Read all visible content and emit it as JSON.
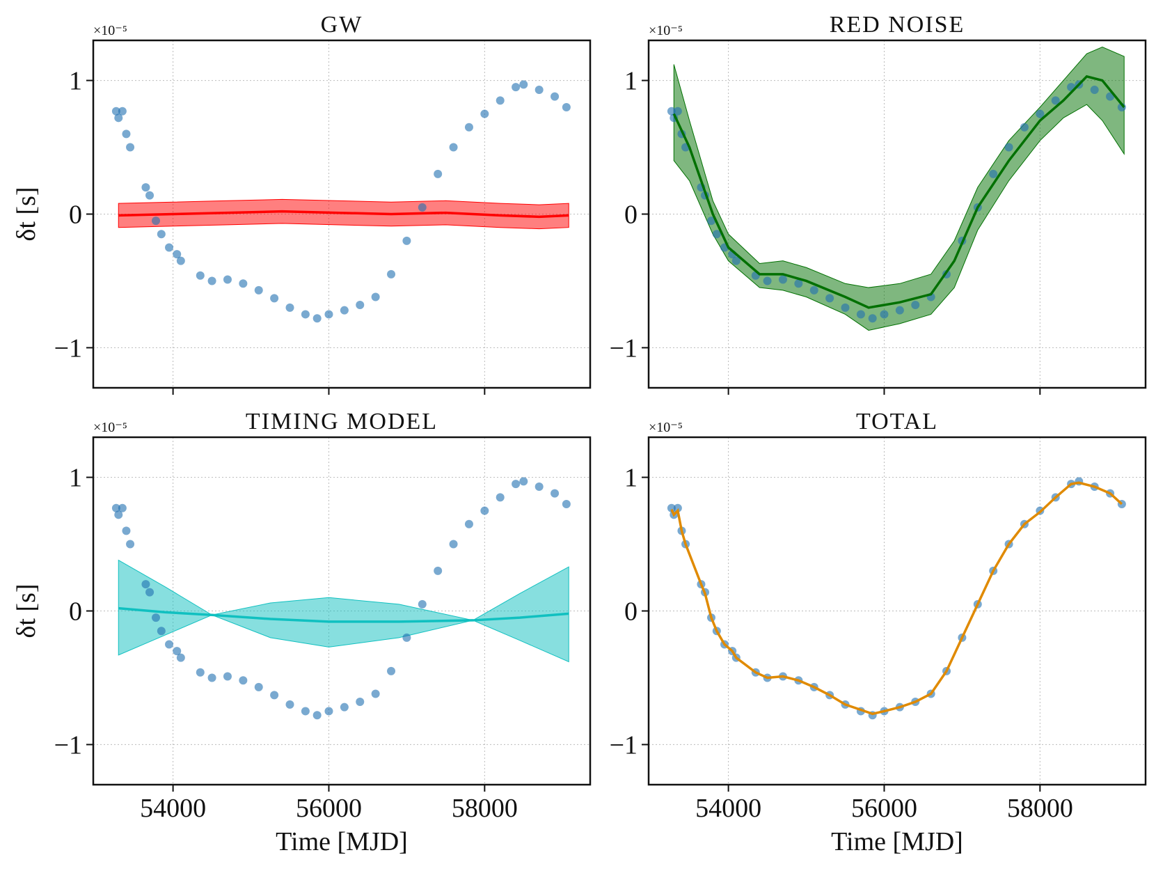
{
  "chart_data": [
    {
      "type": "timeseries",
      "title": "GW",
      "ylabel": "δt [s]",
      "offset_label": "×10⁻⁵",
      "show_xtick_labels": false,
      "xlim": [
        52976,
        59355
      ],
      "ylim": [
        -1.3,
        1.3
      ],
      "xticks": [
        54000,
        56000,
        58000
      ],
      "yticks": [
        {
          "value": -1,
          "label": "−1"
        },
        0,
        1
      ],
      "grid": true,
      "points": {
        "color": "#1f6fb0",
        "x": [
          53270,
          53300,
          53350,
          53400,
          53450,
          53650,
          53700,
          53780,
          53850,
          53950,
          54050,
          54100,
          54350,
          54500,
          54700,
          54900,
          55100,
          55300,
          55500,
          55700,
          55850,
          56000,
          56200,
          56400,
          56600,
          56800,
          57000,
          57200,
          57400,
          57600,
          57800,
          58000,
          58200,
          58400,
          58500,
          58700,
          58900,
          59050
        ],
        "y": [
          0.77,
          0.72,
          0.77,
          0.6,
          0.5,
          0.2,
          0.14,
          -0.05,
          -0.15,
          -0.25,
          -0.3,
          -0.35,
          -0.46,
          -0.5,
          -0.49,
          -0.52,
          -0.57,
          -0.63,
          -0.7,
          -0.75,
          -0.78,
          -0.75,
          -0.72,
          -0.68,
          -0.62,
          -0.45,
          -0.2,
          0.05,
          0.3,
          0.5,
          0.65,
          0.75,
          0.85,
          0.95,
          0.97,
          0.93,
          0.88,
          0.8
        ]
      },
      "model": {
        "color": "#ff0000",
        "x": [
          53300,
          54000,
          54700,
          55400,
          56100,
          56800,
          57500,
          58200,
          58700,
          59080
        ],
        "y": [
          -0.01,
          0.0,
          0.01,
          0.02,
          0.01,
          0.0,
          0.01,
          -0.01,
          -0.02,
          -0.01
        ],
        "upper": [
          0.08,
          0.09,
          0.1,
          0.11,
          0.1,
          0.09,
          0.1,
          0.08,
          0.07,
          0.08
        ],
        "lower": [
          -0.1,
          -0.09,
          -0.08,
          -0.07,
          -0.08,
          -0.09,
          -0.08,
          -0.1,
          -0.11,
          -0.1
        ]
      }
    },
    {
      "type": "timeseries",
      "title": "RED NOISE",
      "offset_label": "×10⁻⁵",
      "show_xtick_labels": false,
      "xlim": [
        52976,
        59355
      ],
      "ylim": [
        -1.3,
        1.3
      ],
      "xticks": [
        54000,
        56000,
        58000
      ],
      "yticks": [
        {
          "value": -1,
          "label": "−1"
        },
        0,
        1
      ],
      "grid": true,
      "points": {
        "color": "#1f6fb0",
        "x": [
          53270,
          53300,
          53350,
          53400,
          53450,
          53650,
          53700,
          53780,
          53850,
          53950,
          54050,
          54100,
          54350,
          54500,
          54700,
          54900,
          55100,
          55300,
          55500,
          55700,
          55850,
          56000,
          56200,
          56400,
          56600,
          56800,
          57000,
          57200,
          57400,
          57600,
          57800,
          58000,
          58200,
          58400,
          58500,
          58700,
          58900,
          59050
        ],
        "y": [
          0.77,
          0.72,
          0.77,
          0.6,
          0.5,
          0.2,
          0.14,
          -0.05,
          -0.15,
          -0.25,
          -0.3,
          -0.35,
          -0.46,
          -0.5,
          -0.49,
          -0.52,
          -0.57,
          -0.63,
          -0.7,
          -0.75,
          -0.78,
          -0.75,
          -0.72,
          -0.68,
          -0.62,
          -0.45,
          -0.2,
          0.05,
          0.3,
          0.5,
          0.65,
          0.75,
          0.85,
          0.95,
          0.97,
          0.93,
          0.88,
          0.8
        ]
      },
      "model": {
        "color": "#007000",
        "x": [
          53300,
          53500,
          53800,
          54000,
          54400,
          54700,
          55000,
          55500,
          55800,
          56200,
          56600,
          56900,
          57200,
          57600,
          58000,
          58300,
          58600,
          58800,
          59080
        ],
        "y": [
          0.75,
          0.5,
          0.0,
          -0.25,
          -0.45,
          -0.45,
          -0.5,
          -0.62,
          -0.7,
          -0.66,
          -0.6,
          -0.35,
          0.05,
          0.4,
          0.7,
          0.85,
          1.03,
          1.0,
          0.8
        ],
        "upper": [
          1.12,
          0.7,
          0.1,
          -0.15,
          -0.37,
          -0.35,
          -0.4,
          -0.52,
          -0.55,
          -0.52,
          -0.45,
          -0.2,
          0.2,
          0.55,
          0.8,
          1.0,
          1.2,
          1.25,
          1.18
        ],
        "lower": [
          0.4,
          0.25,
          -0.15,
          -0.35,
          -0.55,
          -0.57,
          -0.62,
          -0.75,
          -0.87,
          -0.82,
          -0.75,
          -0.55,
          -0.12,
          0.25,
          0.55,
          0.72,
          0.82,
          0.7,
          0.45
        ]
      }
    },
    {
      "type": "timeseries",
      "title": "TIMING MODEL",
      "xlabel": "Time [MJD]",
      "ylabel": "δt [s]",
      "offset_label": "×10⁻⁵",
      "show_xtick_labels": true,
      "xlim": [
        52976,
        59355
      ],
      "ylim": [
        -1.3,
        1.3
      ],
      "xticks": [
        54000,
        56000,
        58000
      ],
      "yticks": [
        {
          "value": -1,
          "label": "−1"
        },
        0,
        1
      ],
      "grid": true,
      "points": {
        "color": "#1f6fb0",
        "x": [
          53270,
          53300,
          53350,
          53400,
          53450,
          53650,
          53700,
          53780,
          53850,
          53950,
          54050,
          54100,
          54350,
          54500,
          54700,
          54900,
          55100,
          55300,
          55500,
          55700,
          55850,
          56000,
          56200,
          56400,
          56600,
          56800,
          57000,
          57200,
          57400,
          57600,
          57800,
          58000,
          58200,
          58400,
          58500,
          58700,
          58900,
          59050
        ],
        "y": [
          0.77,
          0.72,
          0.77,
          0.6,
          0.5,
          0.2,
          0.14,
          -0.05,
          -0.15,
          -0.25,
          -0.3,
          -0.35,
          -0.46,
          -0.5,
          -0.49,
          -0.52,
          -0.57,
          -0.63,
          -0.7,
          -0.75,
          -0.78,
          -0.75,
          -0.72,
          -0.68,
          -0.62,
          -0.45,
          -0.2,
          0.05,
          0.3,
          0.5,
          0.65,
          0.75,
          0.85,
          0.95,
          0.97,
          0.93,
          0.88,
          0.8
        ]
      },
      "model": {
        "color": "#10c0c0",
        "x": [
          53300,
          53900,
          54500,
          55250,
          56000,
          56900,
          57850,
          58450,
          59080
        ],
        "y": [
          0.02,
          -0.01,
          -0.03,
          -0.06,
          -0.08,
          -0.08,
          -0.07,
          -0.05,
          -0.02
        ],
        "upper": [
          0.38,
          0.18,
          -0.03,
          0.06,
          0.1,
          0.05,
          -0.07,
          0.13,
          0.33
        ],
        "lower": [
          -0.33,
          -0.18,
          -0.03,
          -0.2,
          -0.27,
          -0.2,
          -0.07,
          -0.22,
          -0.38
        ]
      }
    },
    {
      "type": "timeseries",
      "title": "TOTAL",
      "xlabel": "Time [MJD]",
      "offset_label": "×10⁻⁵",
      "show_xtick_labels": true,
      "xlim": [
        52976,
        59355
      ],
      "ylim": [
        -1.3,
        1.3
      ],
      "xticks": [
        54000,
        56000,
        58000
      ],
      "yticks": [
        {
          "value": -1,
          "label": "−1"
        },
        0,
        1
      ],
      "grid": true,
      "points": {
        "color": "#1f6fb0",
        "x": [
          53270,
          53300,
          53350,
          53400,
          53450,
          53650,
          53700,
          53780,
          53850,
          53950,
          54050,
          54100,
          54350,
          54500,
          54700,
          54900,
          55100,
          55300,
          55500,
          55700,
          55850,
          56000,
          56200,
          56400,
          56600,
          56800,
          57000,
          57200,
          57400,
          57600,
          57800,
          58000,
          58200,
          58400,
          58500,
          58700,
          58900,
          59050
        ],
        "y": [
          0.77,
          0.72,
          0.77,
          0.6,
          0.5,
          0.2,
          0.14,
          -0.05,
          -0.15,
          -0.25,
          -0.3,
          -0.35,
          -0.46,
          -0.5,
          -0.49,
          -0.52,
          -0.57,
          -0.63,
          -0.7,
          -0.75,
          -0.78,
          -0.75,
          -0.72,
          -0.68,
          -0.62,
          -0.45,
          -0.2,
          0.05,
          0.3,
          0.5,
          0.65,
          0.75,
          0.85,
          0.95,
          0.97,
          0.93,
          0.88,
          0.8
        ]
      },
      "model": {
        "color": "#e08a00",
        "x": [
          53270,
          53300,
          53350,
          53400,
          53450,
          53650,
          53700,
          53780,
          53850,
          53950,
          54050,
          54100,
          54350,
          54500,
          54700,
          54900,
          55100,
          55300,
          55500,
          55700,
          55850,
          56000,
          56200,
          56400,
          56600,
          56800,
          57000,
          57200,
          57400,
          57600,
          57800,
          58000,
          58200,
          58400,
          58500,
          58700,
          58900,
          59050
        ],
        "y": [
          0.76,
          0.72,
          0.75,
          0.6,
          0.5,
          0.2,
          0.13,
          -0.05,
          -0.15,
          -0.25,
          -0.3,
          -0.35,
          -0.46,
          -0.5,
          -0.49,
          -0.52,
          -0.57,
          -0.63,
          -0.7,
          -0.74,
          -0.77,
          -0.75,
          -0.72,
          -0.68,
          -0.62,
          -0.45,
          -0.2,
          0.05,
          0.3,
          0.5,
          0.65,
          0.74,
          0.85,
          0.95,
          0.96,
          0.93,
          0.88,
          0.8
        ]
      }
    }
  ]
}
